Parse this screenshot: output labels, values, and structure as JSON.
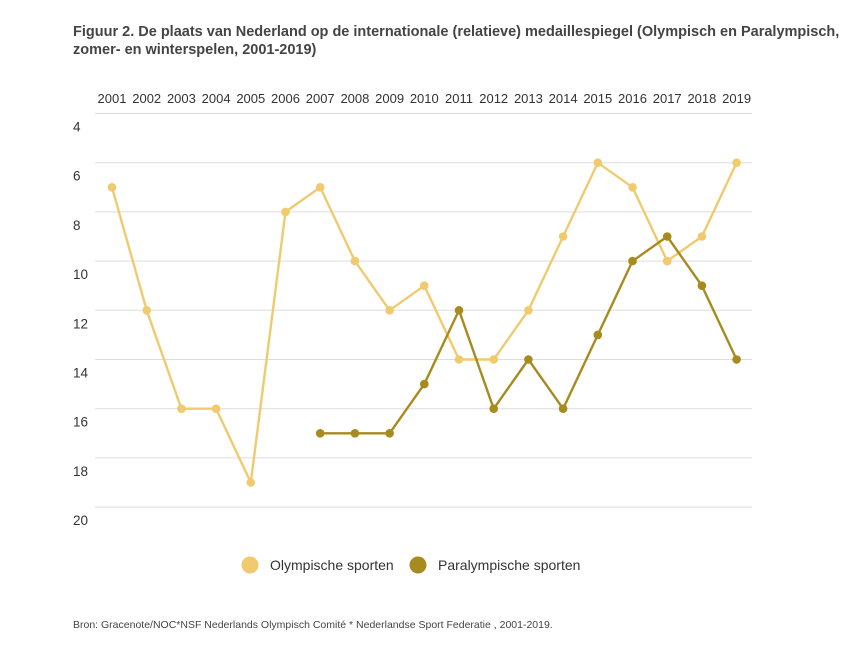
{
  "title": "Figuur 2. De plaats van Nederland op de internationale (relatieve) medaillespiegel (Olympisch en Paralympisch, zomer- en winterspelen, 2001-2019)",
  "source": "Bron: Gracenote/NOC*NSF Nederlands Olympisch Comité * Nederlandse Sport Federatie , 2001-2019.",
  "colors": {
    "olympic": "#F0CA6E",
    "paralympic": "#A88B1E",
    "grid": "#dddddd",
    "text": "#333333"
  },
  "chart_data": {
    "type": "line",
    "x": [
      "2001",
      "2002",
      "2003",
      "2004",
      "2005",
      "2006",
      "2007",
      "2008",
      "2009",
      "2010",
      "2011",
      "2012",
      "2013",
      "2014",
      "2015",
      "2016",
      "2017",
      "2018",
      "2019"
    ],
    "x_axis_position": "top",
    "y_axis": {
      "range": [
        4,
        20
      ],
      "reversed": true,
      "ticks": [
        "4",
        "6",
        "8",
        "10",
        "12",
        "14",
        "16",
        "18",
        "20"
      ]
    },
    "grid": true,
    "legend_position": "bottom-center",
    "series": [
      {
        "name": "Olympische sporten",
        "color": "#F0CA6E",
        "values": [
          7,
          12,
          16,
          16,
          19,
          8,
          7,
          10,
          12,
          11,
          14,
          14,
          12,
          9,
          6,
          7,
          10,
          9,
          6
        ]
      },
      {
        "name": "Paralympische sporten",
        "color": "#A88B1E",
        "values": [
          null,
          null,
          null,
          null,
          null,
          null,
          17,
          17,
          17,
          15,
          12,
          16,
          14,
          16,
          13,
          10,
          9,
          11,
          14
        ]
      }
    ]
  }
}
